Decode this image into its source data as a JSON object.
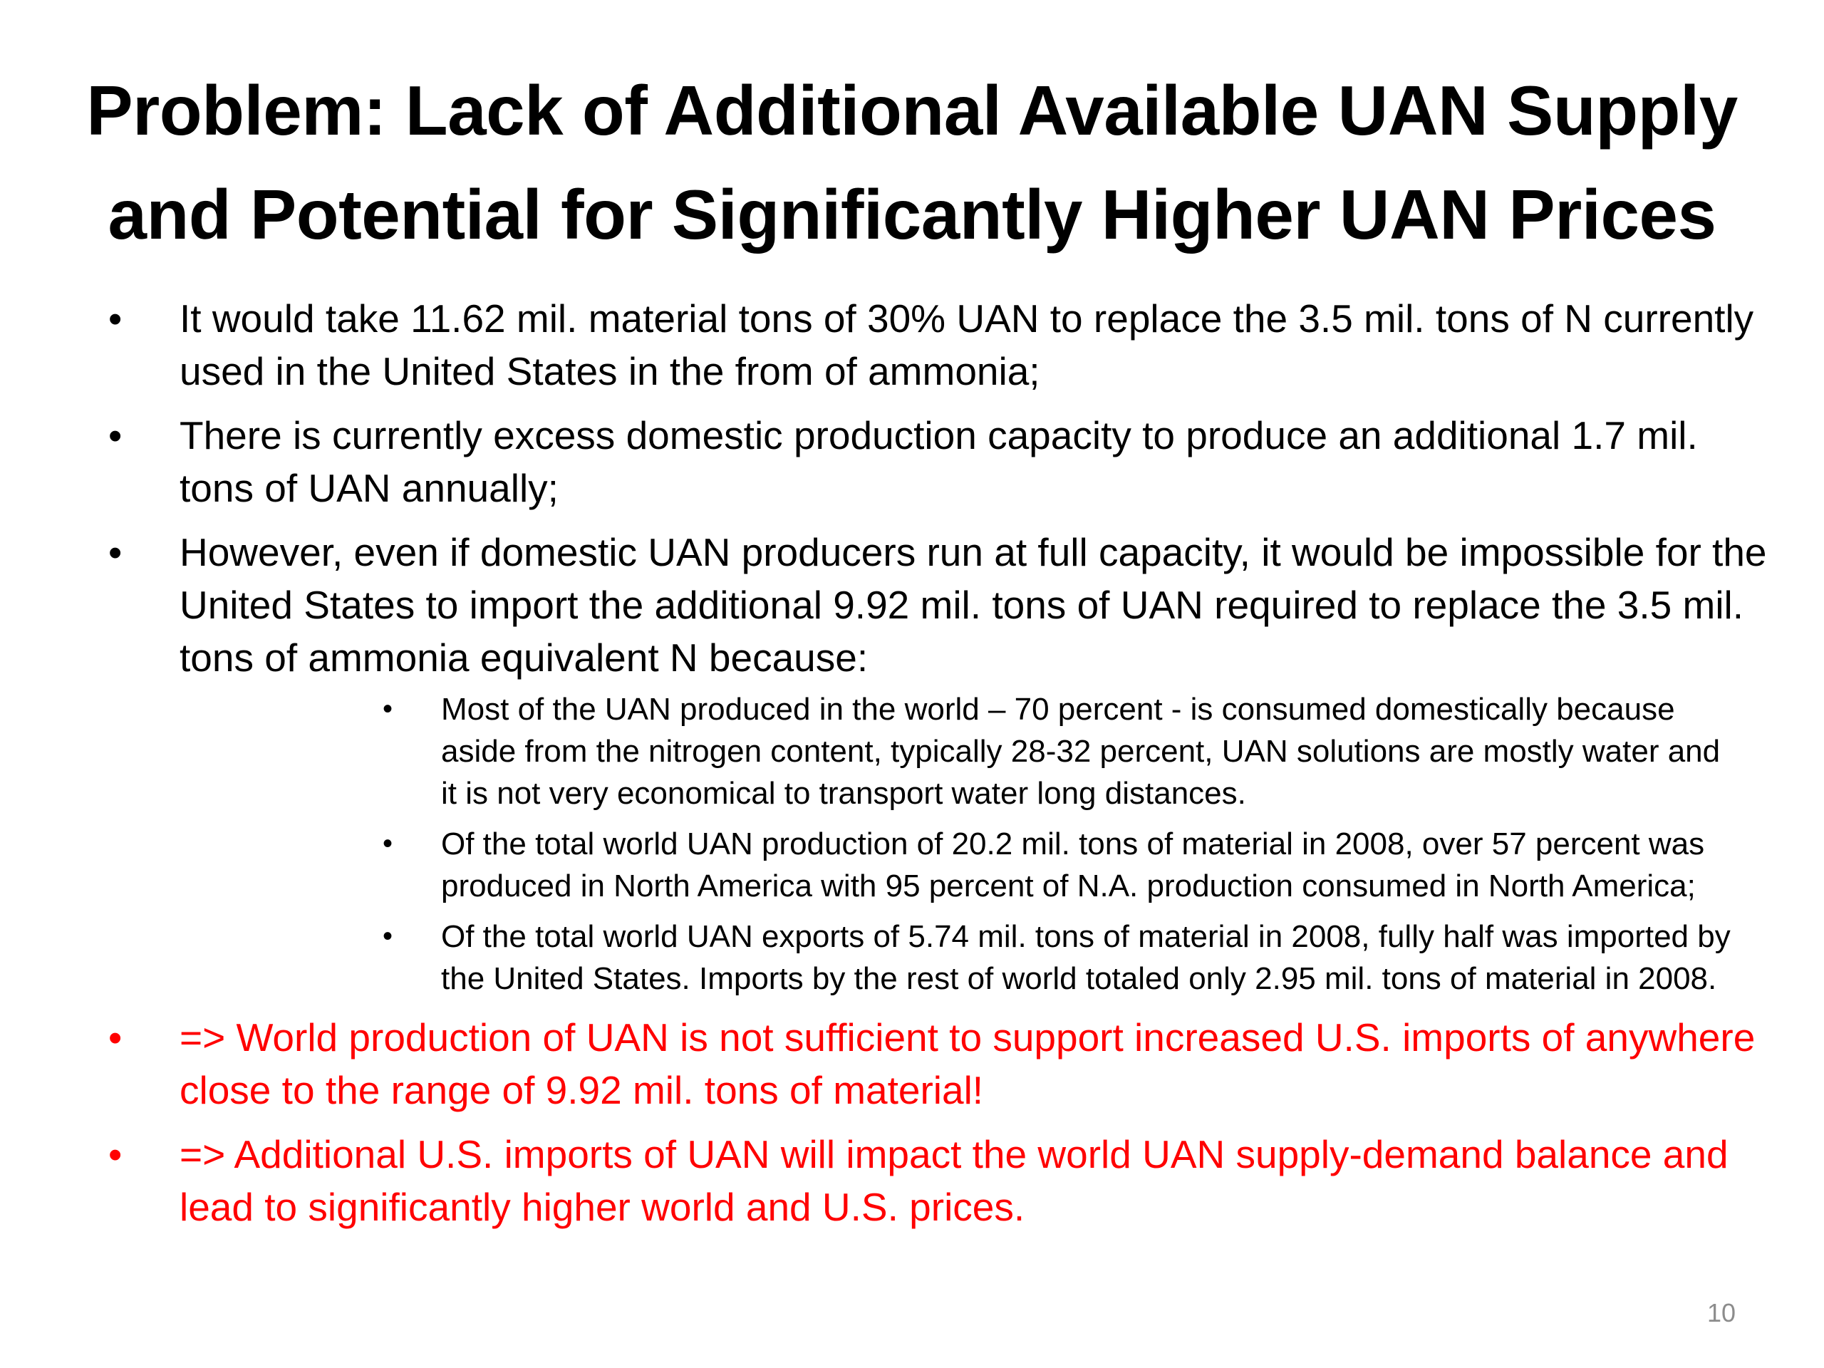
{
  "slide": {
    "title_line1": "Problem: Lack of Additional Available UAN Supply",
    "title_line2": "and Potential for Significantly Higher UAN Prices",
    "bullet_char": "•",
    "bullets": [
      {
        "text": "It would take 11.62 mil. material tons of 30% UAN to replace the 3.5 mil. tons of N currently used in the United States in the from of ammonia;"
      },
      {
        "text": "There is currently excess domestic production capacity to produce an additional 1.7 mil. tons of UAN annually;"
      },
      {
        "text": "However, even if domestic UAN producers run at full capacity, it would be impossible for the United States to import the additional 9.92 mil. tons of UAN required to replace the 3.5 mil. tons of ammonia equivalent N because:",
        "subbullets": [
          "Most of the UAN produced in the world – 70 percent - is consumed domestically because aside from the nitrogen content, typically 28-32 percent, UAN solutions are mostly water and it is not very economical to transport water long distances.",
          "Of the total world UAN production of 20.2 mil. tons of material in 2008, over 57 percent was produced in North America with 95 percent of N.A. production consumed in North America;",
          "Of the total world UAN exports of 5.74 mil. tons of material in 2008, fully half was imported by the United States.  Imports by the rest of world totaled only 2.95 mil. tons of material in 2008."
        ]
      },
      {
        "text": "=>  World production of UAN is not sufficient to support increased U.S. imports of anywhere close to the range of 9.92 mil. tons of material!"
      },
      {
        "text": "=>  Additional U.S. imports of UAN will impact the world UAN supply-demand balance and lead to significantly higher world and U.S. prices."
      }
    ],
    "page_number": "10",
    "colors": {
      "text": "#000000",
      "emphasis": "#ff0000",
      "page_number": "#8c8c8c",
      "background": "#ffffff"
    }
  }
}
